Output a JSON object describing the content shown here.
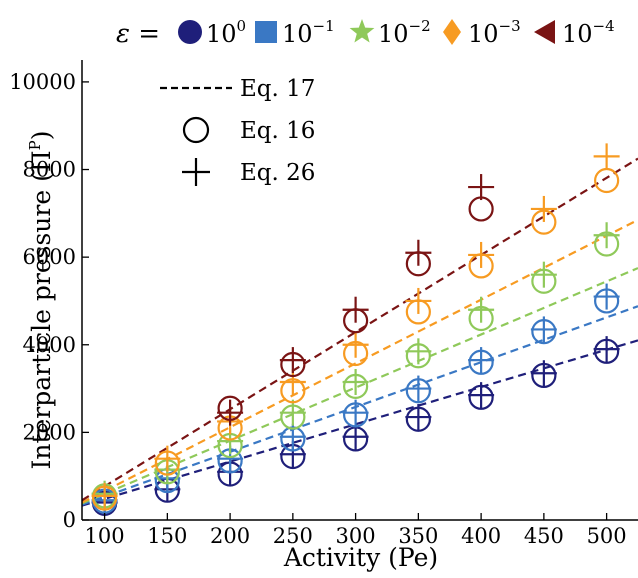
{
  "chart_data": {
    "type": "scatter",
    "title": "",
    "xlabel": "Activity (Pe)",
    "ylabel": "Interparticle pressure (Π",
    "ylabel_sup": "P",
    "ylabel_close": ")",
    "xlim": [
      82,
      525
    ],
    "ylim": [
      0,
      10500
    ],
    "xticks": [
      100,
      150,
      200,
      250,
      300,
      350,
      400,
      450,
      500
    ],
    "yticks": [
      0,
      2000,
      4000,
      6000,
      8000,
      10000
    ],
    "grid": false,
    "legend_top": {
      "prefix": "ε =",
      "entries": [
        {
          "base": "10",
          "exp": "0",
          "marker": "circle",
          "color": "#1f1f7a"
        },
        {
          "base": "10",
          "exp": "−1",
          "marker": "square",
          "color": "#3a78c4"
        },
        {
          "base": "10",
          "exp": "−2",
          "marker": "star",
          "color": "#8fc95a"
        },
        {
          "base": "10",
          "exp": "−3",
          "marker": "diamond",
          "color": "#f79b22"
        },
        {
          "base": "10",
          "exp": "−4",
          "marker": "triangle-left",
          "color": "#7a1414"
        }
      ]
    },
    "legend_methods": {
      "placement": "top-left",
      "entries": [
        {
          "label": "Eq. 17",
          "style": "dashed-line"
        },
        {
          "label": "Eq. 16",
          "style": "open-circle"
        },
        {
          "label": "Eq. 26",
          "style": "plus"
        }
      ]
    },
    "x": [
      100,
      150,
      200,
      250,
      300,
      350,
      400,
      450,
      500
    ],
    "series": [
      {
        "color": "#1f1f7a",
        "eq16": [
          380,
          680,
          1050,
          1450,
          1850,
          2300,
          2800,
          3300,
          3850
        ],
        "eq26": [
          400,
          700,
          1100,
          1500,
          1900,
          2350,
          2850,
          3350,
          3900
        ],
        "eq17": [
          [
            82,
            330
          ],
          [
            525,
            4100
          ]
        ]
      },
      {
        "color": "#3a78c4",
        "eq16": [
          430,
          900,
          1350,
          1850,
          2400,
          2950,
          3600,
          4300,
          5000
        ],
        "eq26": [
          450,
          950,
          1400,
          1900,
          2450,
          3000,
          3650,
          4350,
          5100
        ],
        "eq17": [
          [
            82,
            350
          ],
          [
            525,
            4880
          ]
        ]
      },
      {
        "color": "#8fc95a",
        "eq16": [
          550,
          1100,
          1700,
          2350,
          3050,
          3750,
          4600,
          5450,
          6300
        ],
        "eq26": [
          600,
          1150,
          1800,
          2450,
          3150,
          3850,
          4800,
          5600,
          6500
        ],
        "eq17": [
          [
            82,
            380
          ],
          [
            525,
            5750
          ]
        ]
      },
      {
        "color": "#f79b22",
        "eq16": [
          500,
          1300,
          2100,
          2950,
          3800,
          4750,
          5800,
          6800,
          7750
        ],
        "eq26": [
          550,
          1400,
          2250,
          3150,
          4000,
          5000,
          6050,
          7100,
          8300
        ],
        "eq17": [
          [
            82,
            400
          ],
          [
            525,
            6850
          ]
        ]
      },
      {
        "color": "#7a1414",
        "eq16": [
          null,
          null,
          2550,
          3550,
          4550,
          5850,
          7100,
          null,
          null
        ],
        "eq26": [
          null,
          null,
          2450,
          3650,
          4800,
          6100,
          7600,
          null,
          null
        ],
        "eq17": [
          [
            82,
            450
          ],
          [
            525,
            8250
          ]
        ]
      }
    ]
  }
}
